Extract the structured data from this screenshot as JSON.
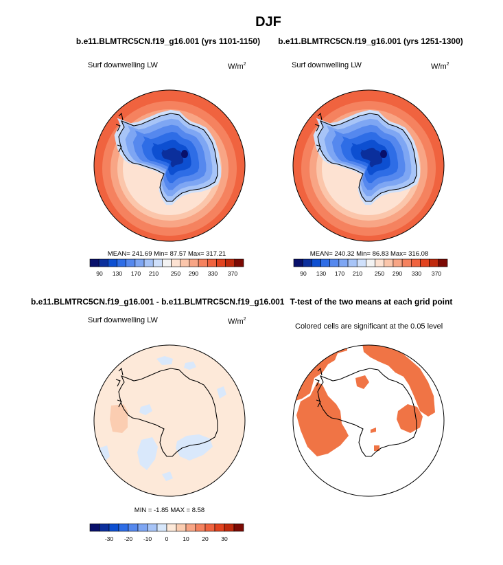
{
  "page_title": "DJF",
  "colors": {
    "c1": [
      "#08106b",
      "#0b2f9c",
      "#0d4fd1",
      "#2e6de6",
      "#5588ee",
      "#7ea6f3",
      "#a7c4f7",
      "#cfe0fb",
      "#f3f3f3",
      "#fde2d2",
      "#fbc6ab",
      "#f8a585",
      "#f5825f",
      "#f0633f",
      "#e2431f",
      "#c02a0d",
      "#7c0a04"
    ],
    "c2": [
      "#08106b",
      "#0b2f9c",
      "#0d4fd1",
      "#2e6de6",
      "#5588ee",
      "#7ea6f3",
      "#a7c4f7",
      "#d7e7fb",
      "#fde9d9",
      "#fbcdb1",
      "#f8a585",
      "#f5825f",
      "#f0633f",
      "#e2431f",
      "#c02a0d",
      "#7c0a04"
    ],
    "sig": "#f07445",
    "diff_bg": "#fde9d9",
    "diff_pos": "#fbcdb1",
    "diff_neg": "#d9e8fb"
  },
  "chart_data": [
    {
      "type": "heatmap",
      "projection": "south-polar-stereographic",
      "title": "b.e11.BLMTRC5CN.f19_g16.001 (yrs 1101-1150)",
      "left_string": "Surf downwelling LW",
      "units": "W/m",
      "units_sup": "2",
      "stats": "MEAN= 241.69  Min=  87.57  Max= 317.21",
      "mean": 241.69,
      "min": 87.57,
      "max": 317.21,
      "colorbar": {
        "levels": [
          90,
          110,
          130,
          150,
          170,
          190,
          210,
          230,
          250,
          270,
          290,
          310,
          330,
          350,
          370
        ],
        "tick_labels": [
          "90",
          "130",
          "170",
          "210",
          "250",
          "290",
          "330",
          "370"
        ]
      }
    },
    {
      "type": "heatmap",
      "projection": "south-polar-stereographic",
      "title": "b.e11.BLMTRC5CN.f19_g16.001 (yrs 1251-1300)",
      "left_string": "Surf downwelling LW",
      "units": "W/m",
      "units_sup": "2",
      "stats": "MEAN= 240.32  Min=  86.83  Max= 316.08",
      "mean": 240.32,
      "min": 86.83,
      "max": 316.08,
      "colorbar": {
        "levels": [
          90,
          110,
          130,
          150,
          170,
          190,
          210,
          230,
          250,
          270,
          290,
          310,
          330,
          350,
          370
        ],
        "tick_labels": [
          "90",
          "130",
          "170",
          "210",
          "250",
          "290",
          "330",
          "370"
        ]
      }
    },
    {
      "type": "heatmap",
      "projection": "south-polar-stereographic",
      "title": "b.e11.BLMTRC5CN.f19_g16.001 - b.e11.BLMTRC5CN.f19_g16.001",
      "left_string": "Surf downwelling LW",
      "units": "W/m",
      "units_sup": "2",
      "stats": "MIN =  -1.85 MAX =   8.58",
      "min": -1.85,
      "max": 8.58,
      "colorbar": {
        "levels": [
          -35,
          -30,
          -25,
          -20,
          -15,
          -10,
          -5,
          0,
          5,
          10,
          15,
          20,
          25,
          30,
          35
        ],
        "tick_labels": [
          "-30",
          "-20",
          "-10",
          "0",
          "10",
          "20",
          "30"
        ]
      }
    },
    {
      "type": "heatmap",
      "projection": "south-polar-stereographic",
      "title": "T-test of the two means at each grid point",
      "left_string": "Colored cells are significant at the 0.05 level"
    }
  ]
}
